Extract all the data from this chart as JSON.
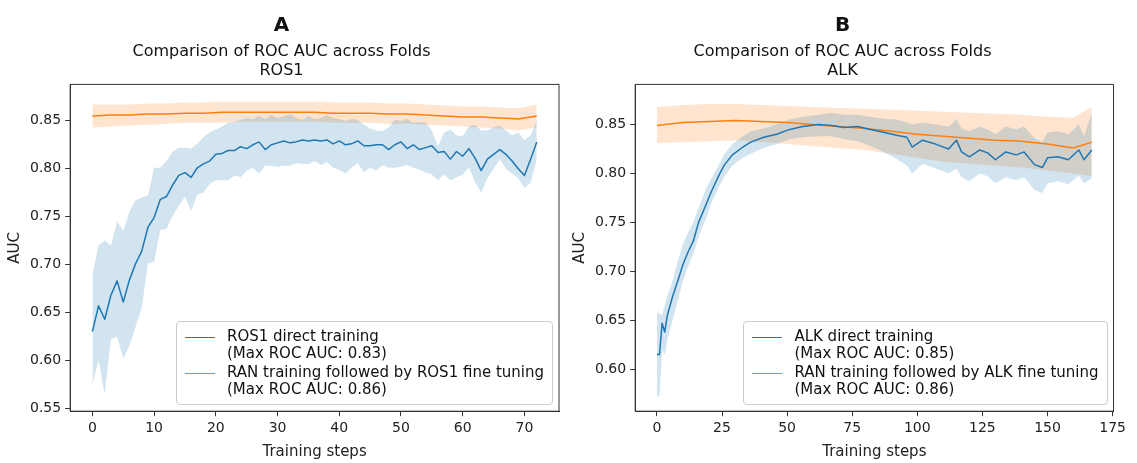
{
  "chart_data": [
    {
      "type": "line",
      "title": "A",
      "subtitle": "Comparison of ROC AUC across Folds\nROS1",
      "xlabel": "Training steps",
      "ylabel": "AUC",
      "legend": "lower right",
      "grid": false,
      "xlim": [
        -3.6,
        75.6
      ],
      "xticks": [
        0,
        10,
        20,
        30,
        40,
        50,
        60,
        70
      ],
      "ylim": [
        0.547,
        0.888
      ],
      "yticks": [
        0.55,
        {
          "value": 0.6,
          "label": "0.60"
        },
        0.65,
        {
          "value": 0.7,
          "label": "0.70"
        },
        0.75,
        {
          "value": 0.8,
          "label": "0.80"
        },
        0.85
      ],
      "series": [
        {
          "name": "ROS1 direct training\n(Max ROC AUC: 0.83)",
          "color": "#1f77b4",
          "x": [
            0,
            1,
            2,
            3,
            4,
            5,
            6,
            7,
            8,
            9,
            10,
            11,
            12,
            13,
            14,
            15,
            16,
            17,
            18,
            19,
            20,
            21,
            22,
            23,
            24,
            25,
            26,
            27,
            28,
            29,
            30,
            31,
            32,
            33,
            34,
            35,
            36,
            37,
            38,
            39,
            40,
            41,
            42,
            43,
            44,
            45,
            46,
            47,
            48,
            49,
            50,
            51,
            52,
            53,
            54,
            55,
            56,
            57,
            58,
            59,
            60,
            61,
            62,
            63,
            64,
            65,
            66,
            67,
            68,
            69,
            70,
            71,
            72
          ],
          "values": [
            0.63,
            0.657,
            0.643,
            0.668,
            0.683,
            0.661,
            0.684,
            0.701,
            0.714,
            0.739,
            0.749,
            0.768,
            0.771,
            0.783,
            0.793,
            0.796,
            0.791,
            0.801,
            0.805,
            0.808,
            0.815,
            0.816,
            0.819,
            0.819,
            0.823,
            0.821,
            0.825,
            0.828,
            0.82,
            0.825,
            0.827,
            0.829,
            0.827,
            0.828,
            0.83,
            0.829,
            0.83,
            0.829,
            0.83,
            0.826,
            0.829,
            0.825,
            0.826,
            0.829,
            0.824,
            0.824,
            0.825,
            0.825,
            0.82,
            0.825,
            0.828,
            0.821,
            0.825,
            0.82,
            0.822,
            0.824,
            0.817,
            0.818,
            0.81,
            0.818,
            0.813,
            0.821,
            0.811,
            0.798,
            0.81,
            0.815,
            0.82,
            0.815,
            0.808,
            0.8,
            0.793,
            0.81,
            0.828
          ],
          "lower": [
            0.575,
            0.6,
            0.565,
            0.622,
            0.625,
            0.602,
            0.615,
            0.635,
            0.655,
            0.701,
            0.703,
            0.736,
            0.737,
            0.751,
            0.761,
            0.771,
            0.756,
            0.773,
            0.775,
            0.784,
            0.788,
            0.788,
            0.788,
            0.793,
            0.791,
            0.798,
            0.801,
            0.795,
            0.803,
            0.803,
            0.802,
            0.803,
            0.803,
            0.806,
            0.805,
            0.805,
            0.808,
            0.804,
            0.807,
            0.801,
            0.799,
            0.795,
            0.801,
            0.806,
            0.796,
            0.801,
            0.798,
            0.804,
            0.801,
            0.801,
            0.802,
            0.804,
            0.801,
            0.799,
            0.796,
            0.794,
            0.788,
            0.794,
            0.788,
            0.791,
            0.794,
            0.801,
            0.786,
            0.775,
            0.79,
            0.8,
            0.81,
            0.8,
            0.795,
            0.79,
            0.78,
            0.785,
            0.81
          ],
          "upper": [
            0.69,
            0.72,
            0.725,
            0.72,
            0.745,
            0.735,
            0.755,
            0.767,
            0.77,
            0.772,
            0.801,
            0.801,
            0.808,
            0.818,
            0.822,
            0.822,
            0.821,
            0.826,
            0.833,
            0.838,
            0.841,
            0.844,
            0.848,
            0.849,
            0.851,
            0.853,
            0.852,
            0.855,
            0.852,
            0.856,
            0.853,
            0.855,
            0.857,
            0.853,
            0.851,
            0.855,
            0.852,
            0.853,
            0.856,
            0.853,
            0.852,
            0.85,
            0.852,
            0.851,
            0.846,
            0.842,
            0.84,
            0.839,
            0.843,
            0.851,
            0.85,
            0.852,
            0.848,
            0.849,
            0.848,
            0.84,
            0.824,
            0.838,
            0.841,
            0.835,
            0.834,
            0.844,
            0.846,
            0.84,
            0.84,
            0.843,
            0.845,
            0.84,
            0.835,
            0.838,
            0.83,
            0.835,
            0.85
          ]
        },
        {
          "name": "RAN training followed by ROS1 fine tuning\n(Max ROC AUC: 0.86)",
          "color": "#ff7f0e",
          "x": [
            0,
            3,
            6,
            9,
            12,
            15,
            18,
            21,
            24,
            27,
            30,
            33,
            36,
            39,
            42,
            45,
            48,
            51,
            54,
            57,
            60,
            63,
            66,
            69,
            72
          ],
          "values": [
            0.855,
            0.856,
            0.856,
            0.857,
            0.857,
            0.858,
            0.858,
            0.859,
            0.859,
            0.859,
            0.859,
            0.859,
            0.859,
            0.858,
            0.858,
            0.858,
            0.857,
            0.857,
            0.856,
            0.855,
            0.854,
            0.854,
            0.853,
            0.852,
            0.855
          ],
          "lower": [
            0.843,
            0.844,
            0.845,
            0.846,
            0.847,
            0.848,
            0.848,
            0.848,
            0.849,
            0.849,
            0.849,
            0.849,
            0.849,
            0.848,
            0.848,
            0.848,
            0.847,
            0.847,
            0.846,
            0.845,
            0.844,
            0.843,
            0.842,
            0.84,
            0.843
          ],
          "upper": [
            0.867,
            0.867,
            0.867,
            0.868,
            0.868,
            0.869,
            0.869,
            0.87,
            0.87,
            0.87,
            0.87,
            0.87,
            0.87,
            0.869,
            0.869,
            0.869,
            0.868,
            0.868,
            0.867,
            0.866,
            0.865,
            0.865,
            0.864,
            0.863,
            0.867
          ]
        }
      ]
    },
    {
      "type": "line",
      "title": "B",
      "subtitle": "Comparison of ROC AUC across Folds\nALK",
      "xlabel": "Training steps",
      "ylabel": "AUC",
      "legend": "lower right",
      "grid": false,
      "xlim": [
        -8.35,
        175.35
      ],
      "xticks": [
        0,
        25,
        50,
        75,
        100,
        125,
        150,
        175
      ],
      "ylim": [
        0.557,
        0.891
      ],
      "yticks": [
        {
          "value": 0.6,
          "label": "0.60"
        },
        0.65,
        {
          "value": 0.7,
          "label": "0.70"
        },
        0.75,
        {
          "value": 0.8,
          "label": "0.80"
        },
        0.85
      ],
      "series": [
        {
          "name": "ALK direct training\n(Max ROC AUC: 0.85)",
          "color": "#1f77b4",
          "x": [
            0,
            1,
            2,
            3,
            4,
            6,
            8,
            10,
            12,
            14,
            16,
            19,
            21,
            24,
            26,
            29,
            33,
            36,
            41,
            46,
            51,
            56,
            62,
            67,
            72,
            77,
            82,
            87,
            92,
            96,
            98,
            102,
            107,
            112,
            115,
            117,
            120,
            124,
            127,
            130,
            134,
            138,
            141,
            145,
            148,
            150,
            154,
            158,
            162,
            164,
            167
          ],
          "values": [
            0.615,
            0.615,
            0.647,
            0.638,
            0.655,
            0.674,
            0.69,
            0.707,
            0.72,
            0.731,
            0.75,
            0.769,
            0.782,
            0.799,
            0.809,
            0.819,
            0.827,
            0.832,
            0.837,
            0.84,
            0.845,
            0.848,
            0.85,
            0.849,
            0.847,
            0.848,
            0.845,
            0.842,
            0.839,
            0.837,
            0.827,
            0.834,
            0.83,
            0.825,
            0.834,
            0.822,
            0.817,
            0.824,
            0.821,
            0.814,
            0.822,
            0.819,
            0.822,
            0.809,
            0.806,
            0.816,
            0.817,
            0.814,
            0.824,
            0.814,
            0.824
          ],
          "lower": [
            0.572,
            0.572,
            0.62,
            0.615,
            0.63,
            0.65,
            0.67,
            0.69,
            0.705,
            0.718,
            0.735,
            0.755,
            0.77,
            0.787,
            0.797,
            0.808,
            0.816,
            0.82,
            0.826,
            0.83,
            0.835,
            0.837,
            0.838,
            0.838,
            0.835,
            0.833,
            0.828,
            0.822,
            0.815,
            0.808,
            0.8,
            0.81,
            0.805,
            0.8,
            0.805,
            0.796,
            0.792,
            0.8,
            0.797,
            0.79,
            0.796,
            0.793,
            0.796,
            0.783,
            0.78,
            0.79,
            0.792,
            0.789,
            0.798,
            0.79,
            0.795
          ],
          "upper": [
            0.657,
            0.657,
            0.655,
            0.665,
            0.675,
            0.69,
            0.71,
            0.728,
            0.74,
            0.75,
            0.765,
            0.785,
            0.795,
            0.81,
            0.82,
            0.83,
            0.838,
            0.843,
            0.846,
            0.85,
            0.855,
            0.858,
            0.86,
            0.862,
            0.86,
            0.86,
            0.858,
            0.856,
            0.855,
            0.852,
            0.85,
            0.852,
            0.85,
            0.848,
            0.855,
            0.846,
            0.843,
            0.848,
            0.845,
            0.84,
            0.848,
            0.845,
            0.848,
            0.836,
            0.832,
            0.842,
            0.843,
            0.84,
            0.85,
            0.838,
            0.862
          ]
        },
        {
          "name": "RAN training followed by ALK fine tuning\n(Max ROC AUC: 0.86)",
          "color": "#ff7f0e",
          "x": [
            0,
            10,
            20,
            30,
            40,
            50,
            60,
            70,
            80,
            90,
            100,
            110,
            120,
            130,
            140,
            150,
            160,
            167
          ],
          "values": [
            0.849,
            0.852,
            0.853,
            0.854,
            0.853,
            0.852,
            0.85,
            0.848,
            0.846,
            0.843,
            0.84,
            0.838,
            0.836,
            0.834,
            0.833,
            0.83,
            0.826,
            0.832
          ],
          "lower": [
            0.831,
            0.832,
            0.833,
            0.834,
            0.832,
            0.83,
            0.828,
            0.826,
            0.824,
            0.82,
            0.816,
            0.812,
            0.81,
            0.808,
            0.806,
            0.803,
            0.8,
            0.797
          ],
          "upper": [
            0.868,
            0.87,
            0.871,
            0.871,
            0.87,
            0.869,
            0.868,
            0.867,
            0.866,
            0.865,
            0.864,
            0.863,
            0.862,
            0.861,
            0.86,
            0.858,
            0.857,
            0.868
          ]
        }
      ]
    }
  ]
}
